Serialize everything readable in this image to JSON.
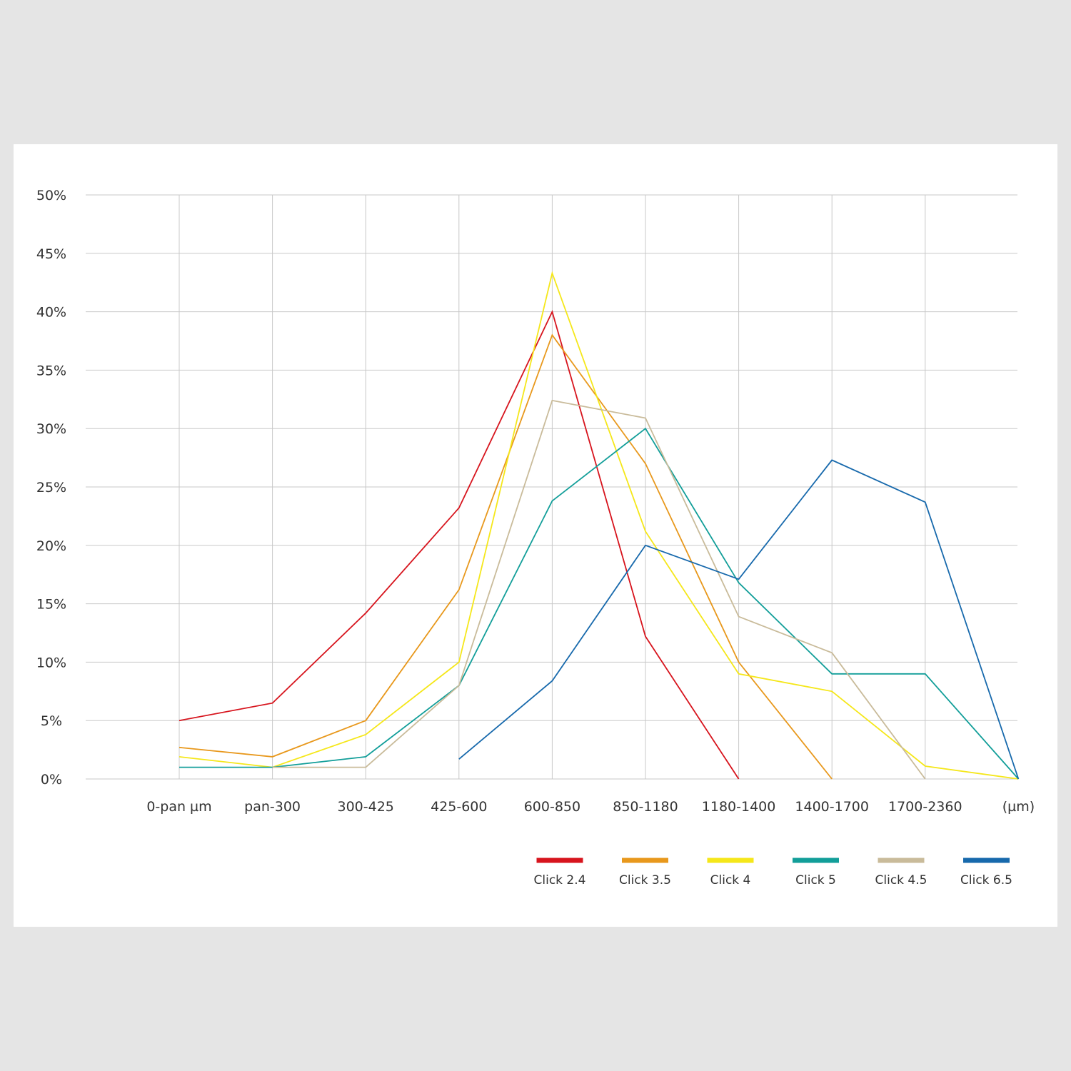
{
  "chart_data": {
    "type": "line",
    "title": "",
    "xlabel": "",
    "ylabel": "",
    "categories": [
      "0-pan µm",
      "pan-300",
      "300-425",
      "425-600",
      "600-850",
      "850-1180",
      "1180-1400",
      "1400-1700",
      "1700-2360",
      "(µm)"
    ],
    "y_ticks": [
      "0%",
      "5%",
      "10%",
      "15%",
      "20%",
      "25%",
      "30%",
      "35%",
      "40%",
      "45%",
      "50%"
    ],
    "ylim": [
      0,
      50
    ],
    "grid": true,
    "legend_position": "bottom-right",
    "series": [
      {
        "name": "Click 2.4",
        "color": "#d7141d",
        "values": [
          5,
          6.5,
          14.2,
          23.2,
          40,
          12.2,
          0,
          null,
          null,
          null
        ]
      },
      {
        "name": "Click 3.5",
        "color": "#e8981c",
        "values": [
          2.7,
          1.9,
          5,
          16.2,
          38,
          27,
          10,
          0,
          null,
          null
        ]
      },
      {
        "name": "Click 4",
        "color": "#f5e71a",
        "values": [
          1.9,
          1,
          3.8,
          10,
          43.3,
          21.2,
          9,
          7.5,
          1.1,
          0
        ]
      },
      {
        "name": "Click 5",
        "color": "#129e99",
        "values": [
          1,
          1,
          1.9,
          8,
          23.8,
          30,
          16.8,
          9,
          9,
          0
        ]
      },
      {
        "name": "Click 4.5",
        "color": "#c9bb9a",
        "values": [
          null,
          1,
          1,
          8,
          32.4,
          30.9,
          13.9,
          10.8,
          0,
          null
        ]
      },
      {
        "name": "Click 6.5",
        "color": "#1769ac",
        "values": [
          null,
          null,
          null,
          1.7,
          8.4,
          20,
          17.1,
          27.3,
          23.7,
          0
        ]
      }
    ]
  }
}
